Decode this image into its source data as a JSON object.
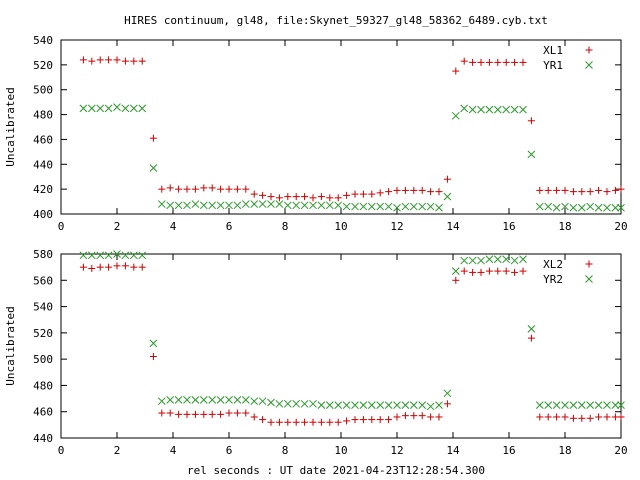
{
  "title": "HIRES continuum, gl48, file:Skynet_59327_gl48_58362_6489.cyb.txt",
  "xlabel": "rel seconds : UT date 2021-04-23T12:28:54.300",
  "colors": {
    "red": "#cc0000",
    "green": "#2a9a2a"
  },
  "chart_data": [
    {
      "type": "scatter",
      "ylabel": "Uncalibrated",
      "xlim": [
        0,
        20
      ],
      "ylim": [
        400,
        540
      ],
      "xticks": [
        0,
        2,
        4,
        6,
        8,
        10,
        12,
        14,
        16,
        18,
        20
      ],
      "yticks": [
        400,
        420,
        440,
        460,
        480,
        500,
        520,
        540
      ],
      "legend_position": "top-right",
      "series": [
        {
          "name": "XL1",
          "marker": "plus",
          "color": "red",
          "points": [
            [
              0.8,
              524
            ],
            [
              1.1,
              523
            ],
            [
              1.4,
              524
            ],
            [
              1.7,
              524
            ],
            [
              2.0,
              524
            ],
            [
              2.3,
              523
            ],
            [
              2.6,
              523
            ],
            [
              2.9,
              523
            ],
            [
              3.3,
              461
            ],
            [
              3.6,
              420
            ],
            [
              3.9,
              421
            ],
            [
              4.2,
              420
            ],
            [
              4.5,
              420
            ],
            [
              4.8,
              420
            ],
            [
              5.1,
              421
            ],
            [
              5.4,
              421
            ],
            [
              5.7,
              420
            ],
            [
              6.0,
              420
            ],
            [
              6.3,
              420
            ],
            [
              6.6,
              420
            ],
            [
              6.9,
              416
            ],
            [
              7.2,
              415
            ],
            [
              7.5,
              414
            ],
            [
              7.8,
              413
            ],
            [
              8.1,
              414
            ],
            [
              8.4,
              414
            ],
            [
              8.7,
              414
            ],
            [
              9.0,
              413
            ],
            [
              9.3,
              414
            ],
            [
              9.6,
              413
            ],
            [
              9.9,
              413
            ],
            [
              10.2,
              415
            ],
            [
              10.5,
              416
            ],
            [
              10.8,
              416
            ],
            [
              11.1,
              416
            ],
            [
              11.4,
              417
            ],
            [
              11.7,
              418
            ],
            [
              12.0,
              419
            ],
            [
              12.3,
              419
            ],
            [
              12.6,
              419
            ],
            [
              12.9,
              419
            ],
            [
              13.2,
              418
            ],
            [
              13.5,
              418
            ],
            [
              13.8,
              428
            ],
            [
              14.1,
              515
            ],
            [
              14.4,
              523
            ],
            [
              14.7,
              522
            ],
            [
              15.0,
              522
            ],
            [
              15.3,
              522
            ],
            [
              15.6,
              522
            ],
            [
              15.9,
              522
            ],
            [
              16.2,
              522
            ],
            [
              16.5,
              522
            ],
            [
              16.8,
              475
            ],
            [
              17.1,
              419
            ],
            [
              17.4,
              419
            ],
            [
              17.7,
              419
            ],
            [
              18.0,
              419
            ],
            [
              18.3,
              418
            ],
            [
              18.6,
              418
            ],
            [
              18.9,
              418
            ],
            [
              19.2,
              419
            ],
            [
              19.5,
              418
            ],
            [
              19.8,
              419
            ],
            [
              20.0,
              420
            ]
          ]
        },
        {
          "name": "YR1",
          "marker": "x",
          "color": "green",
          "points": [
            [
              0.8,
              485
            ],
            [
              1.1,
              485
            ],
            [
              1.4,
              485
            ],
            [
              1.7,
              485
            ],
            [
              2.0,
              486
            ],
            [
              2.3,
              485
            ],
            [
              2.6,
              485
            ],
            [
              2.9,
              485
            ],
            [
              3.3,
              437
            ],
            [
              3.6,
              408
            ],
            [
              3.9,
              407
            ],
            [
              4.2,
              407
            ],
            [
              4.5,
              407
            ],
            [
              4.8,
              408
            ],
            [
              5.1,
              407
            ],
            [
              5.4,
              407
            ],
            [
              5.7,
              407
            ],
            [
              6.0,
              407
            ],
            [
              6.3,
              407
            ],
            [
              6.6,
              408
            ],
            [
              6.9,
              408
            ],
            [
              7.2,
              408
            ],
            [
              7.5,
              408
            ],
            [
              7.8,
              408
            ],
            [
              8.1,
              407
            ],
            [
              8.4,
              407
            ],
            [
              8.7,
              407
            ],
            [
              9.0,
              407
            ],
            [
              9.3,
              407
            ],
            [
              9.6,
              407
            ],
            [
              9.9,
              407
            ],
            [
              10.2,
              406
            ],
            [
              10.5,
              406
            ],
            [
              10.8,
              406
            ],
            [
              11.1,
              406
            ],
            [
              11.4,
              406
            ],
            [
              11.7,
              406
            ],
            [
              12.0,
              405
            ],
            [
              12.3,
              406
            ],
            [
              12.6,
              406
            ],
            [
              12.9,
              406
            ],
            [
              13.2,
              406
            ],
            [
              13.5,
              405
            ],
            [
              13.8,
              414
            ],
            [
              14.1,
              479
            ],
            [
              14.4,
              485
            ],
            [
              14.7,
              484
            ],
            [
              15.0,
              484
            ],
            [
              15.3,
              484
            ],
            [
              15.6,
              484
            ],
            [
              15.9,
              484
            ],
            [
              16.2,
              484
            ],
            [
              16.5,
              484
            ],
            [
              16.8,
              448
            ],
            [
              17.1,
              406
            ],
            [
              17.4,
              406
            ],
            [
              17.7,
              405
            ],
            [
              18.0,
              406
            ],
            [
              18.3,
              405
            ],
            [
              18.6,
              405
            ],
            [
              18.9,
              406
            ],
            [
              19.2,
              405
            ],
            [
              19.5,
              405
            ],
            [
              19.8,
              405
            ],
            [
              20.0,
              405
            ]
          ]
        }
      ]
    },
    {
      "type": "scatter",
      "ylabel": "Uncalibrated",
      "xlim": [
        0,
        20
      ],
      "ylim": [
        440,
        580
      ],
      "xticks": [
        0,
        2,
        4,
        6,
        8,
        10,
        12,
        14,
        16,
        18,
        20
      ],
      "yticks": [
        440,
        460,
        480,
        500,
        520,
        540,
        560,
        580
      ],
      "legend_position": "top-right",
      "series": [
        {
          "name": "XL2",
          "marker": "plus",
          "color": "red",
          "points": [
            [
              0.8,
              570
            ],
            [
              1.1,
              569
            ],
            [
              1.4,
              570
            ],
            [
              1.7,
              570
            ],
            [
              2.0,
              571
            ],
            [
              2.3,
              571
            ],
            [
              2.6,
              570
            ],
            [
              2.9,
              570
            ],
            [
              3.3,
              502
            ],
            [
              3.6,
              459
            ],
            [
              3.9,
              459
            ],
            [
              4.2,
              458
            ],
            [
              4.5,
              458
            ],
            [
              4.8,
              458
            ],
            [
              5.1,
              458
            ],
            [
              5.4,
              458
            ],
            [
              5.7,
              458
            ],
            [
              6.0,
              459
            ],
            [
              6.3,
              459
            ],
            [
              6.6,
              459
            ],
            [
              6.9,
              456
            ],
            [
              7.2,
              454
            ],
            [
              7.5,
              452
            ],
            [
              7.8,
              452
            ],
            [
              8.1,
              452
            ],
            [
              8.4,
              452
            ],
            [
              8.7,
              452
            ],
            [
              9.0,
              452
            ],
            [
              9.3,
              452
            ],
            [
              9.6,
              452
            ],
            [
              9.9,
              452
            ],
            [
              10.2,
              453
            ],
            [
              10.5,
              454
            ],
            [
              10.8,
              454
            ],
            [
              11.1,
              454
            ],
            [
              11.4,
              454
            ],
            [
              11.7,
              454
            ],
            [
              12.0,
              456
            ],
            [
              12.3,
              457
            ],
            [
              12.6,
              457
            ],
            [
              12.9,
              457
            ],
            [
              13.2,
              456
            ],
            [
              13.5,
              456
            ],
            [
              13.8,
              466
            ],
            [
              14.1,
              560
            ],
            [
              14.4,
              567
            ],
            [
              14.7,
              566
            ],
            [
              15.0,
              566
            ],
            [
              15.3,
              567
            ],
            [
              15.6,
              567
            ],
            [
              15.9,
              567
            ],
            [
              16.2,
              566
            ],
            [
              16.5,
              567
            ],
            [
              16.8,
              516
            ],
            [
              17.1,
              456
            ],
            [
              17.4,
              456
            ],
            [
              17.7,
              456
            ],
            [
              18.0,
              456
            ],
            [
              18.3,
              455
            ],
            [
              18.6,
              455
            ],
            [
              18.9,
              455
            ],
            [
              19.2,
              456
            ],
            [
              19.5,
              456
            ],
            [
              19.8,
              456
            ],
            [
              20.0,
              456
            ]
          ]
        },
        {
          "name": "YR2",
          "marker": "x",
          "color": "green",
          "points": [
            [
              0.8,
              579
            ],
            [
              1.1,
              579
            ],
            [
              1.4,
              579
            ],
            [
              1.7,
              579
            ],
            [
              2.0,
              580
            ],
            [
              2.3,
              579
            ],
            [
              2.6,
              579
            ],
            [
              2.9,
              579
            ],
            [
              3.3,
              512
            ],
            [
              3.6,
              468
            ],
            [
              3.9,
              469
            ],
            [
              4.2,
              469
            ],
            [
              4.5,
              469
            ],
            [
              4.8,
              469
            ],
            [
              5.1,
              469
            ],
            [
              5.4,
              469
            ],
            [
              5.7,
              469
            ],
            [
              6.0,
              469
            ],
            [
              6.3,
              469
            ],
            [
              6.6,
              469
            ],
            [
              6.9,
              468
            ],
            [
              7.2,
              468
            ],
            [
              7.5,
              467
            ],
            [
              7.8,
              466
            ],
            [
              8.1,
              466
            ],
            [
              8.4,
              466
            ],
            [
              8.7,
              466
            ],
            [
              9.0,
              466
            ],
            [
              9.3,
              465
            ],
            [
              9.6,
              465
            ],
            [
              9.9,
              465
            ],
            [
              10.2,
              465
            ],
            [
              10.5,
              465
            ],
            [
              10.8,
              465
            ],
            [
              11.1,
              465
            ],
            [
              11.4,
              465
            ],
            [
              11.7,
              465
            ],
            [
              12.0,
              465
            ],
            [
              12.3,
              465
            ],
            [
              12.6,
              465
            ],
            [
              12.9,
              465
            ],
            [
              13.2,
              464
            ],
            [
              13.5,
              465
            ],
            [
              13.8,
              474
            ],
            [
              14.1,
              567
            ],
            [
              14.4,
              575
            ],
            [
              14.7,
              575
            ],
            [
              15.0,
              575
            ],
            [
              15.3,
              576
            ],
            [
              15.6,
              576
            ],
            [
              15.9,
              576
            ],
            [
              16.2,
              575
            ],
            [
              16.5,
              576
            ],
            [
              16.8,
              523
            ],
            [
              17.1,
              465
            ],
            [
              17.4,
              465
            ],
            [
              17.7,
              465
            ],
            [
              18.0,
              465
            ],
            [
              18.3,
              465
            ],
            [
              18.6,
              465
            ],
            [
              18.9,
              465
            ],
            [
              19.2,
              465
            ],
            [
              19.5,
              465
            ],
            [
              19.8,
              465
            ],
            [
              20.0,
              465
            ]
          ]
        }
      ]
    }
  ]
}
